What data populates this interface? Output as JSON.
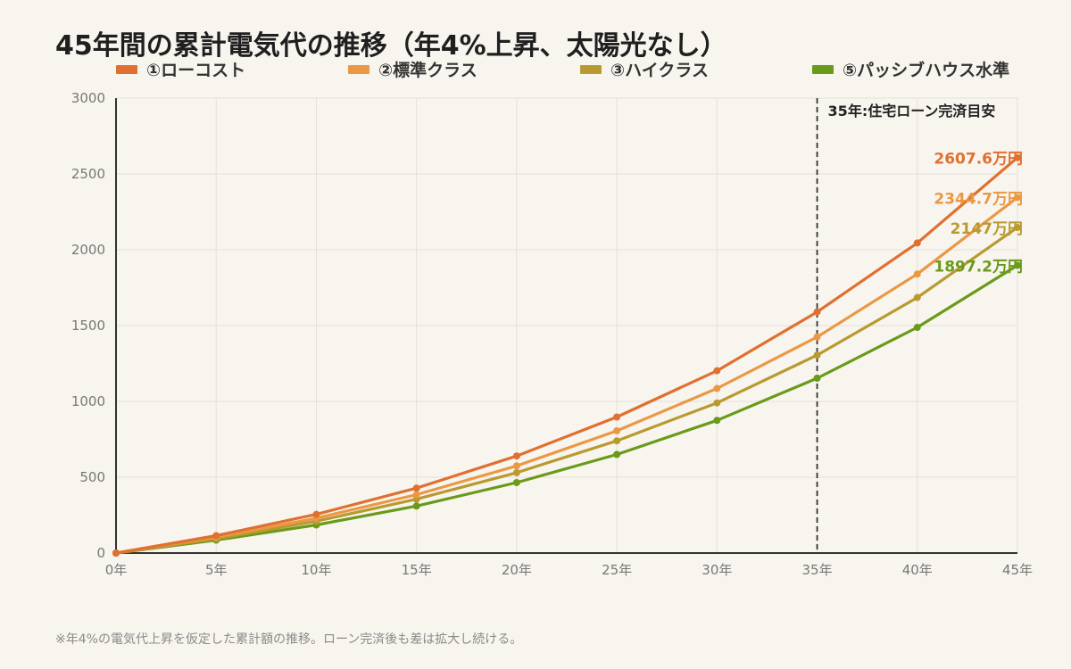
{
  "title": "45年間の累計電気代の推移（年4%上昇、太陽光なし）",
  "note": "※年4%の電気代上昇を仮定した累計額の推移。ローン完済後も差は拡大し続ける。",
  "colors": {
    "background": "#f8f5ef",
    "grid": "#e4e0d8",
    "axis": "#333333",
    "marker_line": "#333333"
  },
  "chart_data": {
    "type": "line",
    "x": [
      0,
      5,
      10,
      15,
      20,
      25,
      30,
      35,
      40,
      45
    ],
    "x_tick_labels": [
      "0年",
      "5年",
      "10年",
      "15年",
      "20年",
      "25年",
      "30年",
      "35年",
      "40年",
      "45年"
    ],
    "y_ticks": [
      0,
      500,
      1000,
      1500,
      2000,
      2500,
      3000
    ],
    "xlim": [
      0,
      45
    ],
    "ylim": [
      0,
      3000
    ],
    "grid": true,
    "legend_position": "top",
    "series": [
      {
        "name": "①ローコスト",
        "color": "#e07030",
        "values": [
          0,
          115,
          255,
          428,
          640,
          897,
          1202,
          1590,
          2045,
          2607.6
        ],
        "end_label": "2607.6万円"
      },
      {
        "name": "②標準クラス",
        "color": "#eb9845",
        "values": [
          0,
          105,
          230,
          385,
          575,
          806,
          1085,
          1425,
          1840,
          2344.7
        ],
        "end_label": "2344.7万円"
      },
      {
        "name": "③ハイクラス",
        "color": "#b99a30",
        "values": [
          0,
          95,
          210,
          355,
          530,
          740,
          990,
          1305,
          1685,
          2147
        ],
        "end_label": "2147万円"
      },
      {
        "name": "⑤パッシブハウス水準",
        "color": "#6a9a1a",
        "values": [
          0,
          85,
          185,
          310,
          465,
          650,
          875,
          1153,
          1488,
          1897.2
        ],
        "end_label": "1897.2万円"
      }
    ],
    "annotations": [
      {
        "x": 35,
        "text": "35年:住宅ローン完済目安",
        "style": "dashed-vertical-line"
      }
    ]
  }
}
